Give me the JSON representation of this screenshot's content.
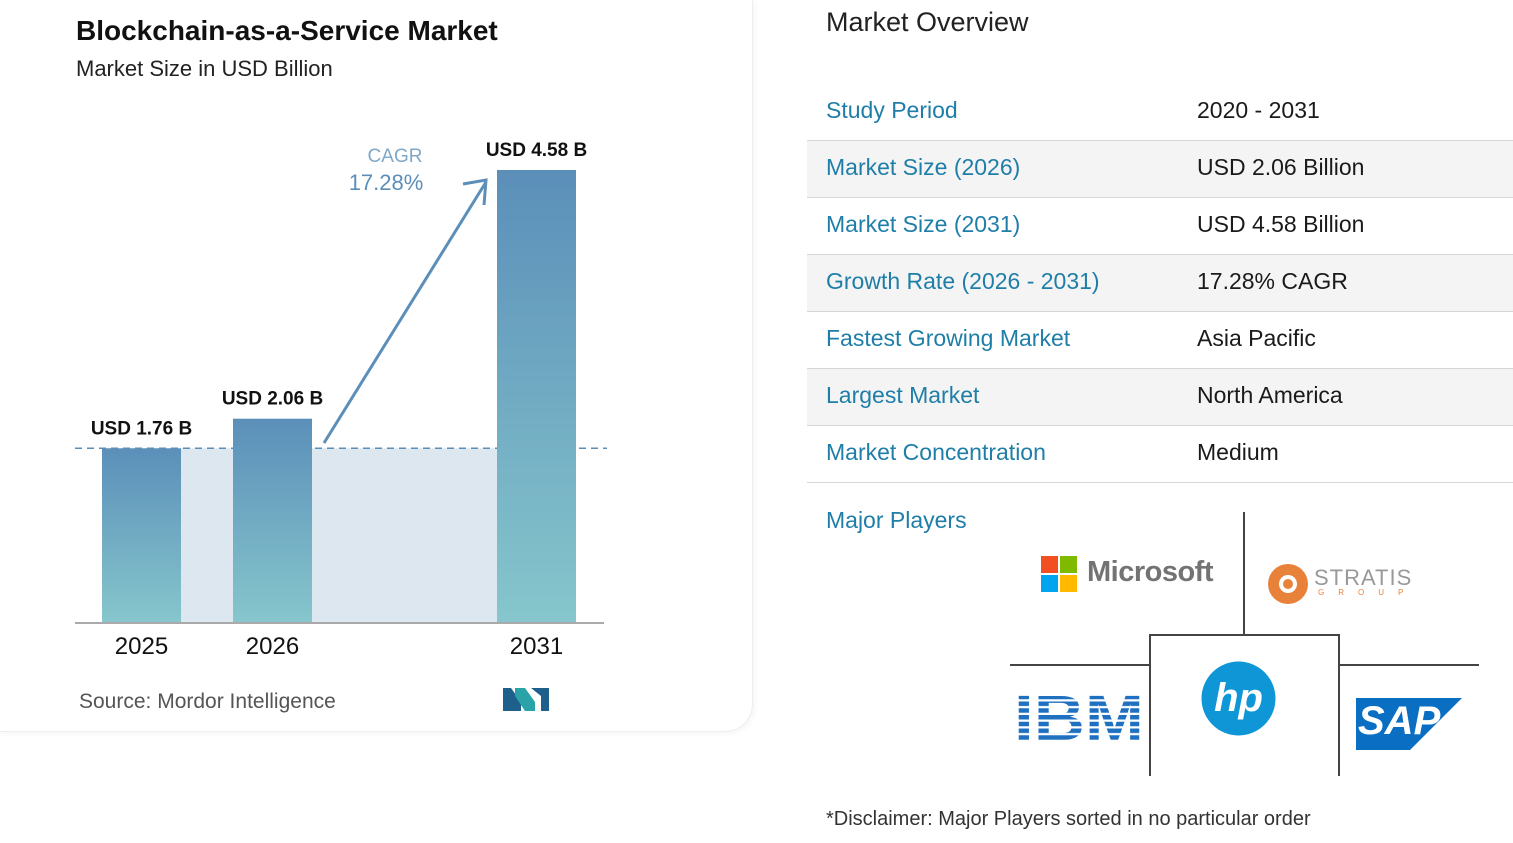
{
  "chart_data": {
    "type": "bar",
    "title": "Blockchain-as-a-Service Market",
    "subtitle": "Market Size in USD Billion",
    "categories": [
      "2025",
      "2026",
      "2031"
    ],
    "values": [
      1.76,
      2.06,
      4.58
    ],
    "data_labels": [
      "USD 1.76 B",
      "USD 2.06 B",
      "USD 4.58 B"
    ],
    "cagr_label": "CAGR",
    "cagr_value": "17.28%",
    "ylim": [
      0,
      4.58
    ],
    "colors": {
      "bar_top": "#5b8fb9",
      "bar_bottom": "#86c6cc",
      "shade": "#dde7f0",
      "arrow": "#5b8fb9"
    }
  },
  "source": "Source:  Mordor Intelligence",
  "overview": {
    "title": "Market Overview",
    "rows": [
      {
        "label": "Study Period",
        "value": "2020 - 2031"
      },
      {
        "label": "Market Size (2026)",
        "value": "USD 2.06 Billion"
      },
      {
        "label": "Market Size (2031)",
        "value": "USD 4.58 Billion"
      },
      {
        "label": "Growth Rate (2026 - 2031)",
        "value": "17.28% CAGR"
      },
      {
        "label": "Fastest Growing Market",
        "value": "Asia Pacific"
      },
      {
        "label": "Largest Market",
        "value": "North America"
      },
      {
        "label": "Market Concentration",
        "value": "Medium"
      }
    ]
  },
  "major_players": {
    "title": "Major Players",
    "players": [
      {
        "name": "Microsoft",
        "icon": "microsoft-logo"
      },
      {
        "name": "STRATIS",
        "sub": "GROUP",
        "icon": "stratis-logo"
      },
      {
        "name": "IBM",
        "icon": "ibm-logo"
      },
      {
        "name": "hp",
        "icon": "hp-logo"
      },
      {
        "name": "SAP",
        "icon": "sap-logo"
      }
    ]
  },
  "disclaimer": "*Disclaimer: Major Players sorted in no particular order",
  "accent_color": "#1f7ea8"
}
